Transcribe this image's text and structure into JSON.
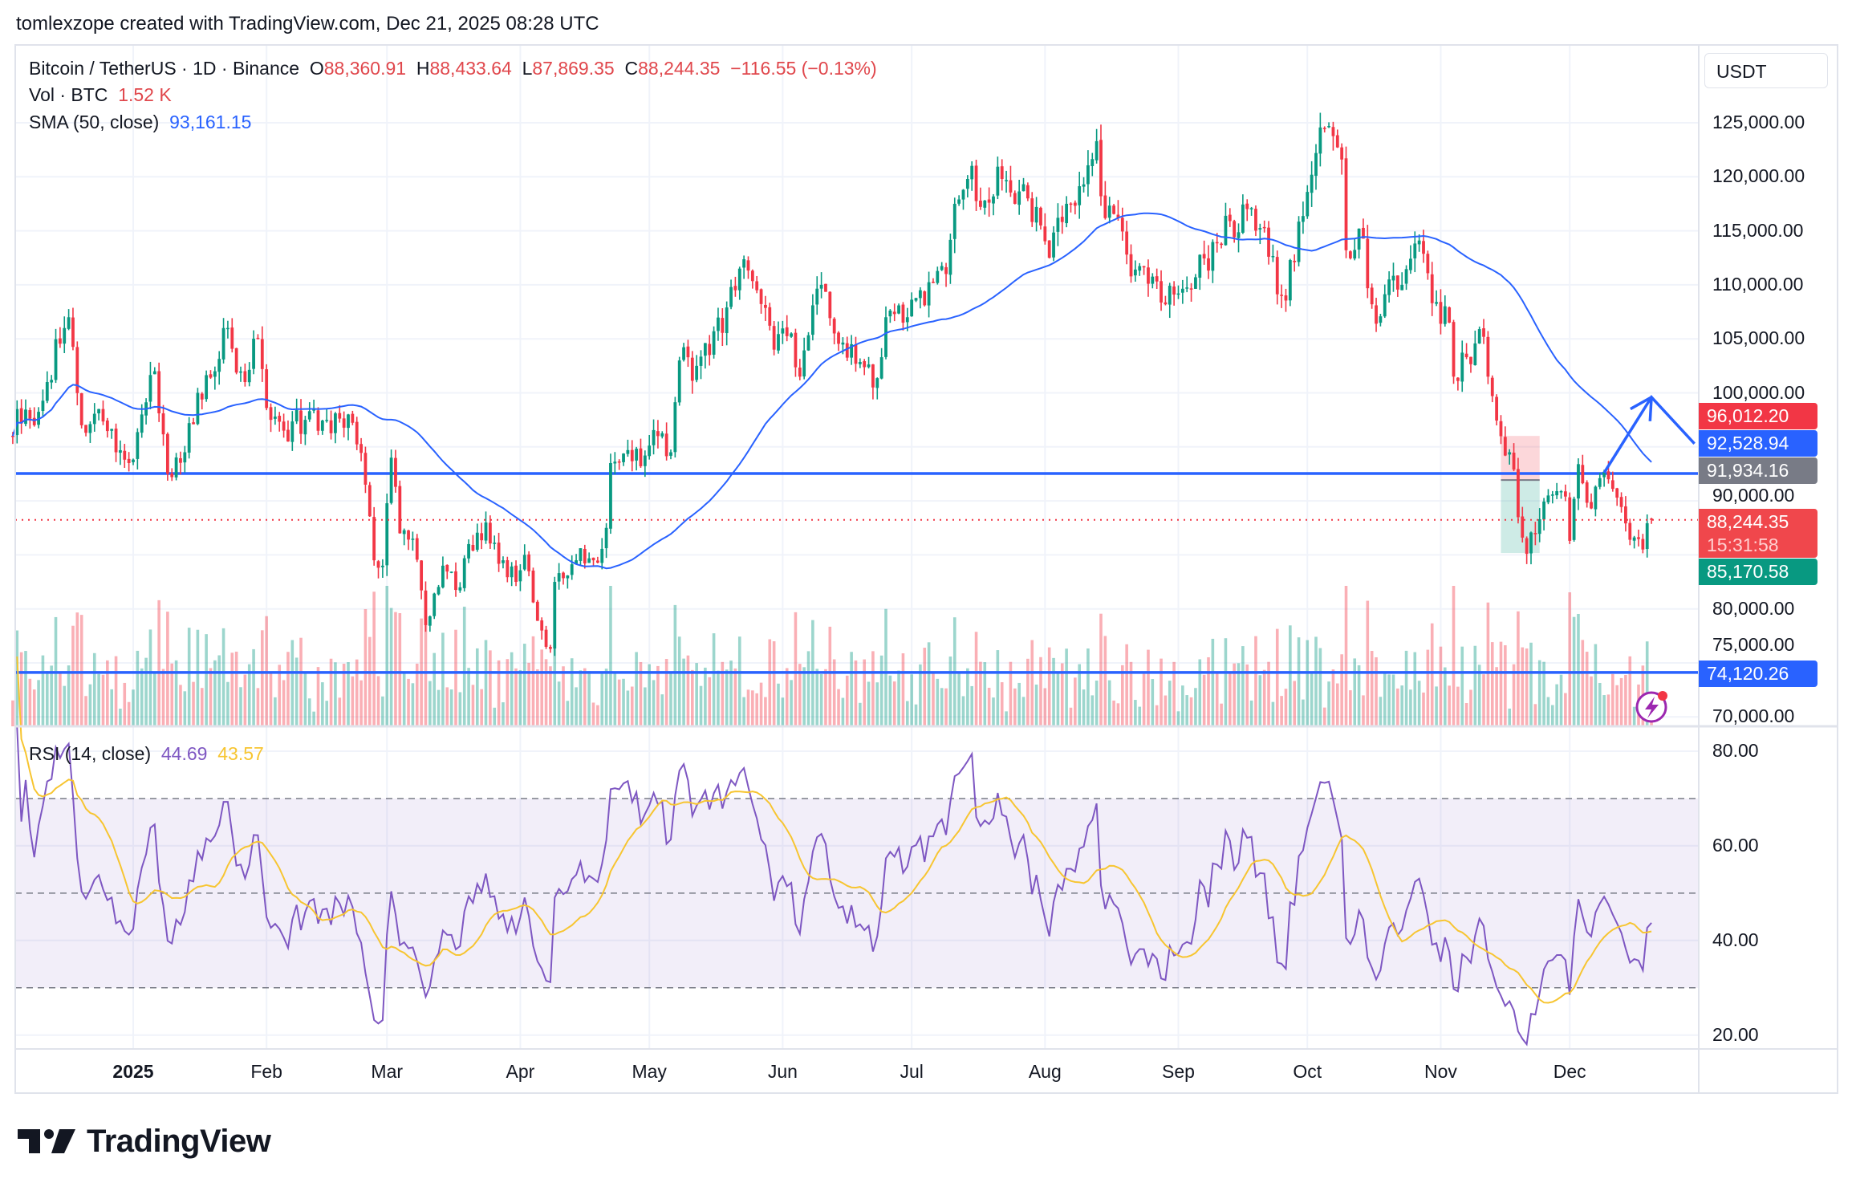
{
  "header": {
    "attribution": "tomlexzope created with TradingView.com, Dec 21, 2025 08:28 UTC"
  },
  "legend": {
    "symbol": "Bitcoin / TetherUS · 1D · Binance",
    "o_label": "O",
    "open": "88,360.91",
    "h_label": "H",
    "high": "88,433.64",
    "l_label": "L",
    "low": "87,869.35",
    "c_label": "C",
    "close": "88,244.35",
    "change": "−116.55 (−0.13%)",
    "vol_label": "Vol · BTC",
    "vol": "1.52 K",
    "sma_label": "SMA (50, close)",
    "sma": "93,161.15"
  },
  "rsi": {
    "label": "RSI (14, close)",
    "value": "44.69",
    "ma": "43.57",
    "levels": [
      70,
      50,
      30
    ],
    "ticks": [
      80,
      60,
      40,
      20
    ],
    "tick_labels": [
      "80.00",
      "60.00",
      "40.00",
      "20.00"
    ]
  },
  "price_axis": {
    "currency": "USDT",
    "ticks": [
      125000,
      120000,
      115000,
      110000,
      105000,
      100000,
      90000,
      80000,
      75000,
      70000
    ],
    "tick_labels": [
      "125,000.00",
      "120,000.00",
      "115,000.00",
      "110,000.00",
      "105,000.00",
      "100,000.00",
      "90,000.00",
      "80,000.00",
      "75,000.00",
      "70,000.00"
    ]
  },
  "price_labels": {
    "target": {
      "text": "96,012.20",
      "color": "#f23645"
    },
    "trendline": {
      "text": "92,528.94",
      "color": "#2962ff"
    },
    "entry": {
      "text": "91,934.16",
      "color": "#787b86"
    },
    "last": {
      "text": "88,244.35",
      "countdown": "15:31:58",
      "color": "#f23645"
    },
    "stop": {
      "text": "85,170.58",
      "color": "#089981"
    },
    "support": {
      "text": "74,120.26",
      "color": "#2962ff"
    }
  },
  "time_axis": {
    "labels": [
      "2025",
      "Feb",
      "Mar",
      "Apr",
      "May",
      "Jun",
      "Jul",
      "Aug",
      "Sep",
      "Oct",
      "Nov",
      "Dec"
    ],
    "dates": [
      "2025-01-01",
      "2025-02-01",
      "2025-03-01",
      "2025-04-01",
      "2025-05-01",
      "2025-06-01",
      "2025-07-01",
      "2025-08-01",
      "2025-09-01",
      "2025-10-01",
      "2025-11-01",
      "2025-12-01"
    ]
  },
  "logo": "TradingView",
  "colors": {
    "up": "#089981",
    "down": "#f23645",
    "sma": "#2962ff",
    "rsi": "#7e57c2",
    "rsi_ma": "#f7c531",
    "drawing": "#2962ff",
    "alert_icon": "#9c27b0"
  },
  "chart_data": {
    "type": "candlestick",
    "title": "Bitcoin / TetherUS · 1D · Binance",
    "ylim": [
      70000,
      127000
    ],
    "grid": true,
    "close_keypoints": {
      "dates": [
        "2024-12-04",
        "2024-12-05",
        "2024-12-09",
        "2024-12-12",
        "2024-12-16",
        "2024-12-17",
        "2024-12-20",
        "2024-12-24",
        "2024-12-28",
        "2024-12-31",
        "2025-01-03",
        "2025-01-06",
        "2025-01-09",
        "2025-01-13",
        "2025-01-16",
        "2025-01-20",
        "2025-01-22",
        "2025-01-27",
        "2025-01-30",
        "2025-02-02",
        "2025-02-05",
        "2025-02-10",
        "2025-02-15",
        "2025-02-20",
        "2025-02-24",
        "2025-02-26",
        "2025-02-28",
        "2025-03-02",
        "2025-03-04",
        "2025-03-07",
        "2025-03-10",
        "2025-03-14",
        "2025-03-18",
        "2025-03-20",
        "2025-03-24",
        "2025-03-28",
        "2025-03-31",
        "2025-04-02",
        "2025-04-06",
        "2025-04-08",
        "2025-04-09",
        "2025-04-14",
        "2025-04-18",
        "2025-04-21",
        "2025-04-22",
        "2025-04-26",
        "2025-04-30",
        "2025-05-03",
        "2025-05-06",
        "2025-05-08",
        "2025-05-12",
        "2025-05-15",
        "2025-05-21",
        "2025-05-22",
        "2025-05-26",
        "2025-05-30",
        "2025-06-03",
        "2025-06-05",
        "2025-06-10",
        "2025-06-13",
        "2025-06-17",
        "2025-06-22",
        "2025-06-25",
        "2025-06-30",
        "2025-07-03",
        "2025-07-09",
        "2025-07-11",
        "2025-07-14",
        "2025-07-18",
        "2025-07-22",
        "2025-07-25",
        "2025-07-28",
        "2025-07-31",
        "2025-08-02",
        "2025-08-07",
        "2025-08-10",
        "2025-08-13",
        "2025-08-14",
        "2025-08-18",
        "2025-08-20",
        "2025-08-25",
        "2025-08-29",
        "2025-09-01",
        "2025-09-05",
        "2025-09-10",
        "2025-09-13",
        "2025-09-18",
        "2025-09-22",
        "2025-09-25",
        "2025-09-28",
        "2025-10-01",
        "2025-10-03",
        "2025-10-06",
        "2025-10-09",
        "2025-10-10",
        "2025-10-13",
        "2025-10-16",
        "2025-10-17",
        "2025-10-20",
        "2025-10-23",
        "2025-10-27",
        "2025-10-30",
        "2025-11-03",
        "2025-11-04",
        "2025-11-07",
        "2025-11-10",
        "2025-11-13",
        "2025-11-16",
        "2025-11-18",
        "2025-11-20",
        "2025-11-21",
        "2025-11-24",
        "2025-11-26",
        "2025-11-28",
        "2025-11-30",
        "2025-12-01",
        "2025-12-03",
        "2025-12-06",
        "2025-12-09",
        "2025-12-10",
        "2025-12-12",
        "2025-12-15",
        "2025-12-18",
        "2025-12-20"
      ],
      "close": [
        96000,
        98500,
        97000,
        101000,
        106000,
        107000,
        97000,
        98500,
        94500,
        93500,
        98000,
        102000,
        92500,
        94500,
        100000,
        102000,
        106000,
        101000,
        105000,
        97500,
        96500,
        97500,
        97500,
        98000,
        91500,
        84500,
        84000,
        94000,
        87000,
        86500,
        78500,
        84000,
        82000,
        86000,
        88000,
        84500,
        82500,
        85000,
        78000,
        76300,
        82500,
        84500,
        84500,
        87500,
        93500,
        94700,
        94200,
        96000,
        94500,
        103000,
        102500,
        103500,
        109500,
        111500,
        109500,
        104000,
        105500,
        101500,
        110000,
        105500,
        104500,
        100500,
        107000,
        107000,
        109500,
        111000,
        117500,
        119800,
        117800,
        119800,
        117500,
        118000,
        115500,
        112500,
        117500,
        119300,
        123300,
        118200,
        116200,
        112800,
        110100,
        108200,
        109200,
        110700,
        113900,
        115900,
        117100,
        112600,
        109000,
        112100,
        118600,
        122200,
        124700,
        121600,
        113200,
        115200,
        108200,
        106400,
        110500,
        110000,
        114100,
        108300,
        106500,
        101500,
        103300,
        105900,
        99700,
        94200,
        92900,
        86600,
        85100,
        88300,
        90500,
        90900,
        90400,
        86300,
        93400,
        89300,
        92700,
        92000,
        90300,
        86400,
        85500,
        88244.35
      ]
    },
    "last_bar": {
      "date": "2025-12-20",
      "open": 88360.91,
      "high": 88433.64,
      "low": 87869.35,
      "close": 88244.35,
      "volume_btc": 1520
    },
    "indicators": {
      "sma_period": 50,
      "rsi_period": 14,
      "rsi_ma_period": 14,
      "sma_last": 93161.15,
      "rsi_last": 44.69,
      "rsi_ma_last": 43.57
    },
    "horizontal_lines": [
      92528.94,
      74120.26
    ],
    "position": {
      "start": "2025-11-15",
      "end": "2025-11-24",
      "target": 96012.2,
      "entry": 91934.16,
      "stop": 85170.58
    },
    "arrow": {
      "points": [
        [
          "2025-12-09",
          92600
        ],
        [
          "2025-12-20",
          99600
        ],
        [
          "2025-12-30",
          95300
        ]
      ]
    }
  }
}
